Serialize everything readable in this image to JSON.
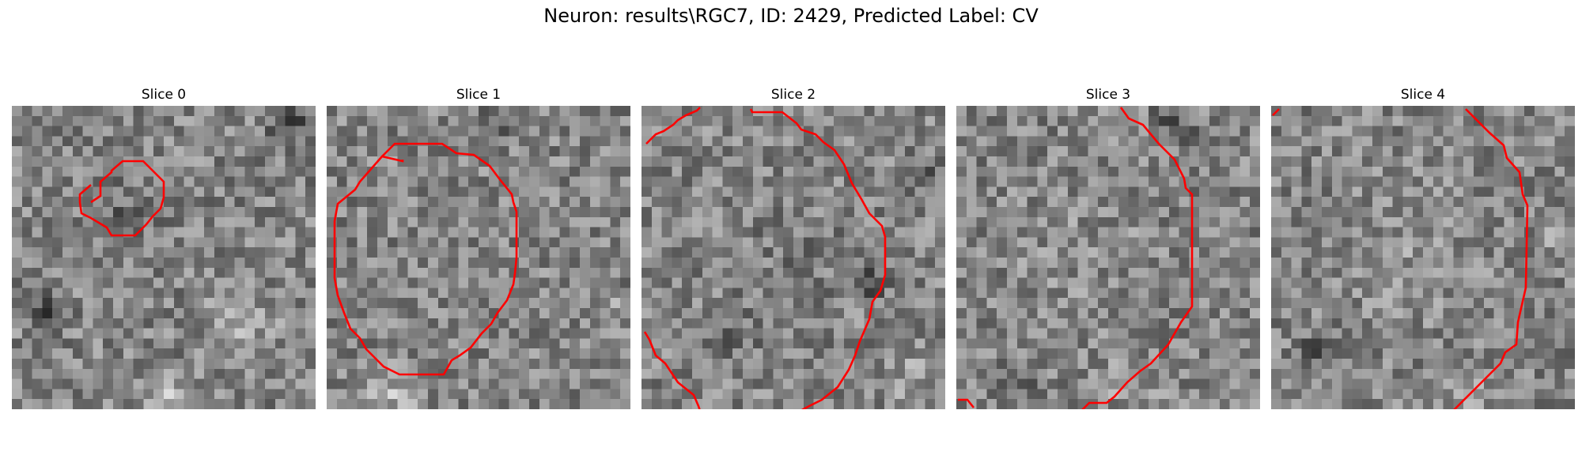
{
  "figure": {
    "title": "Neuron: results\\RGC7, ID: 2429, Predicted Label: CV",
    "contour_color": "#ff0000"
  },
  "slices": [
    {
      "label": "Slice 0"
    },
    {
      "label": "Slice 1"
    },
    {
      "label": "Slice 2"
    },
    {
      "label": "Slice 3"
    },
    {
      "label": "Slice 4"
    }
  ]
}
